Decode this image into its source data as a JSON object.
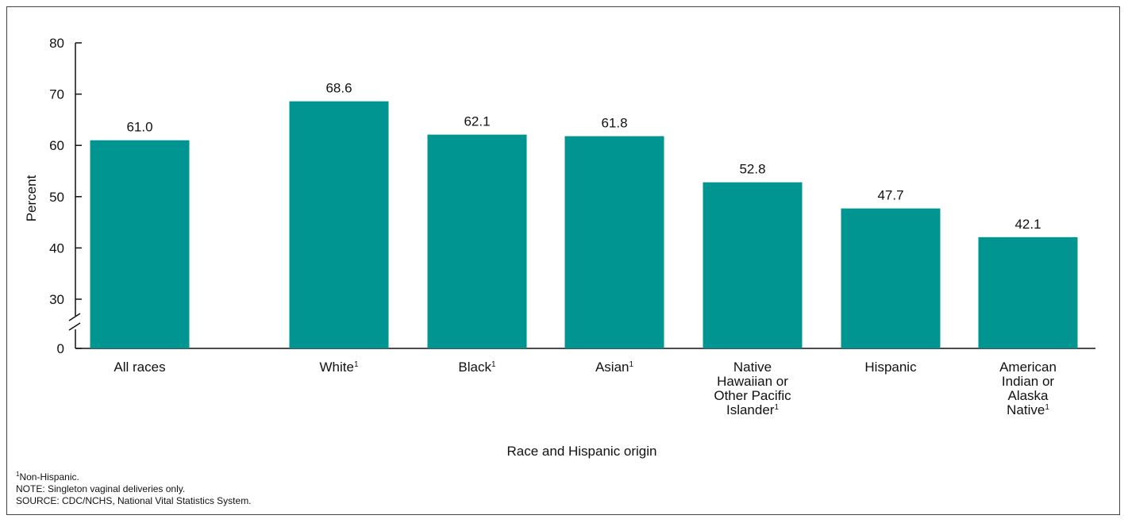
{
  "chart_data": {
    "type": "bar",
    "ylabel": "Percent",
    "xlabel": "Race and Hispanic origin",
    "yticks": [
      "0",
      "30",
      "40",
      "50",
      "60",
      "70",
      "80"
    ],
    "ylim": [
      30,
      80
    ],
    "axis_break": true,
    "bar_color": "#009590",
    "categories": [
      {
        "lines": [
          "All races"
        ],
        "sup": false
      },
      {
        "lines": [
          "White"
        ],
        "sup": true
      },
      {
        "lines": [
          "Black"
        ],
        "sup": true
      },
      {
        "lines": [
          "Asian"
        ],
        "sup": true
      },
      {
        "lines": [
          "Native",
          "Hawaiian or",
          "Other Pacific",
          "Islander"
        ],
        "sup": true
      },
      {
        "lines": [
          "Hispanic"
        ],
        "sup": false
      },
      {
        "lines": [
          "American",
          "Indian or",
          "Alaska",
          "Native"
        ],
        "sup": true
      }
    ],
    "values": [
      61.0,
      68.6,
      62.1,
      61.8,
      52.8,
      47.7,
      42.1
    ],
    "value_labels": [
      "61.0",
      "68.6",
      "62.1",
      "61.8",
      "52.8",
      "47.7",
      "42.1"
    ]
  },
  "footnotes": {
    "sup_mark": "1",
    "note1": "Non-Hispanic.",
    "note2": "NOTE: Singleton vaginal deliveries only.",
    "note3": "SOURCE: CDC/NCHS, National Vital Statistics System."
  }
}
